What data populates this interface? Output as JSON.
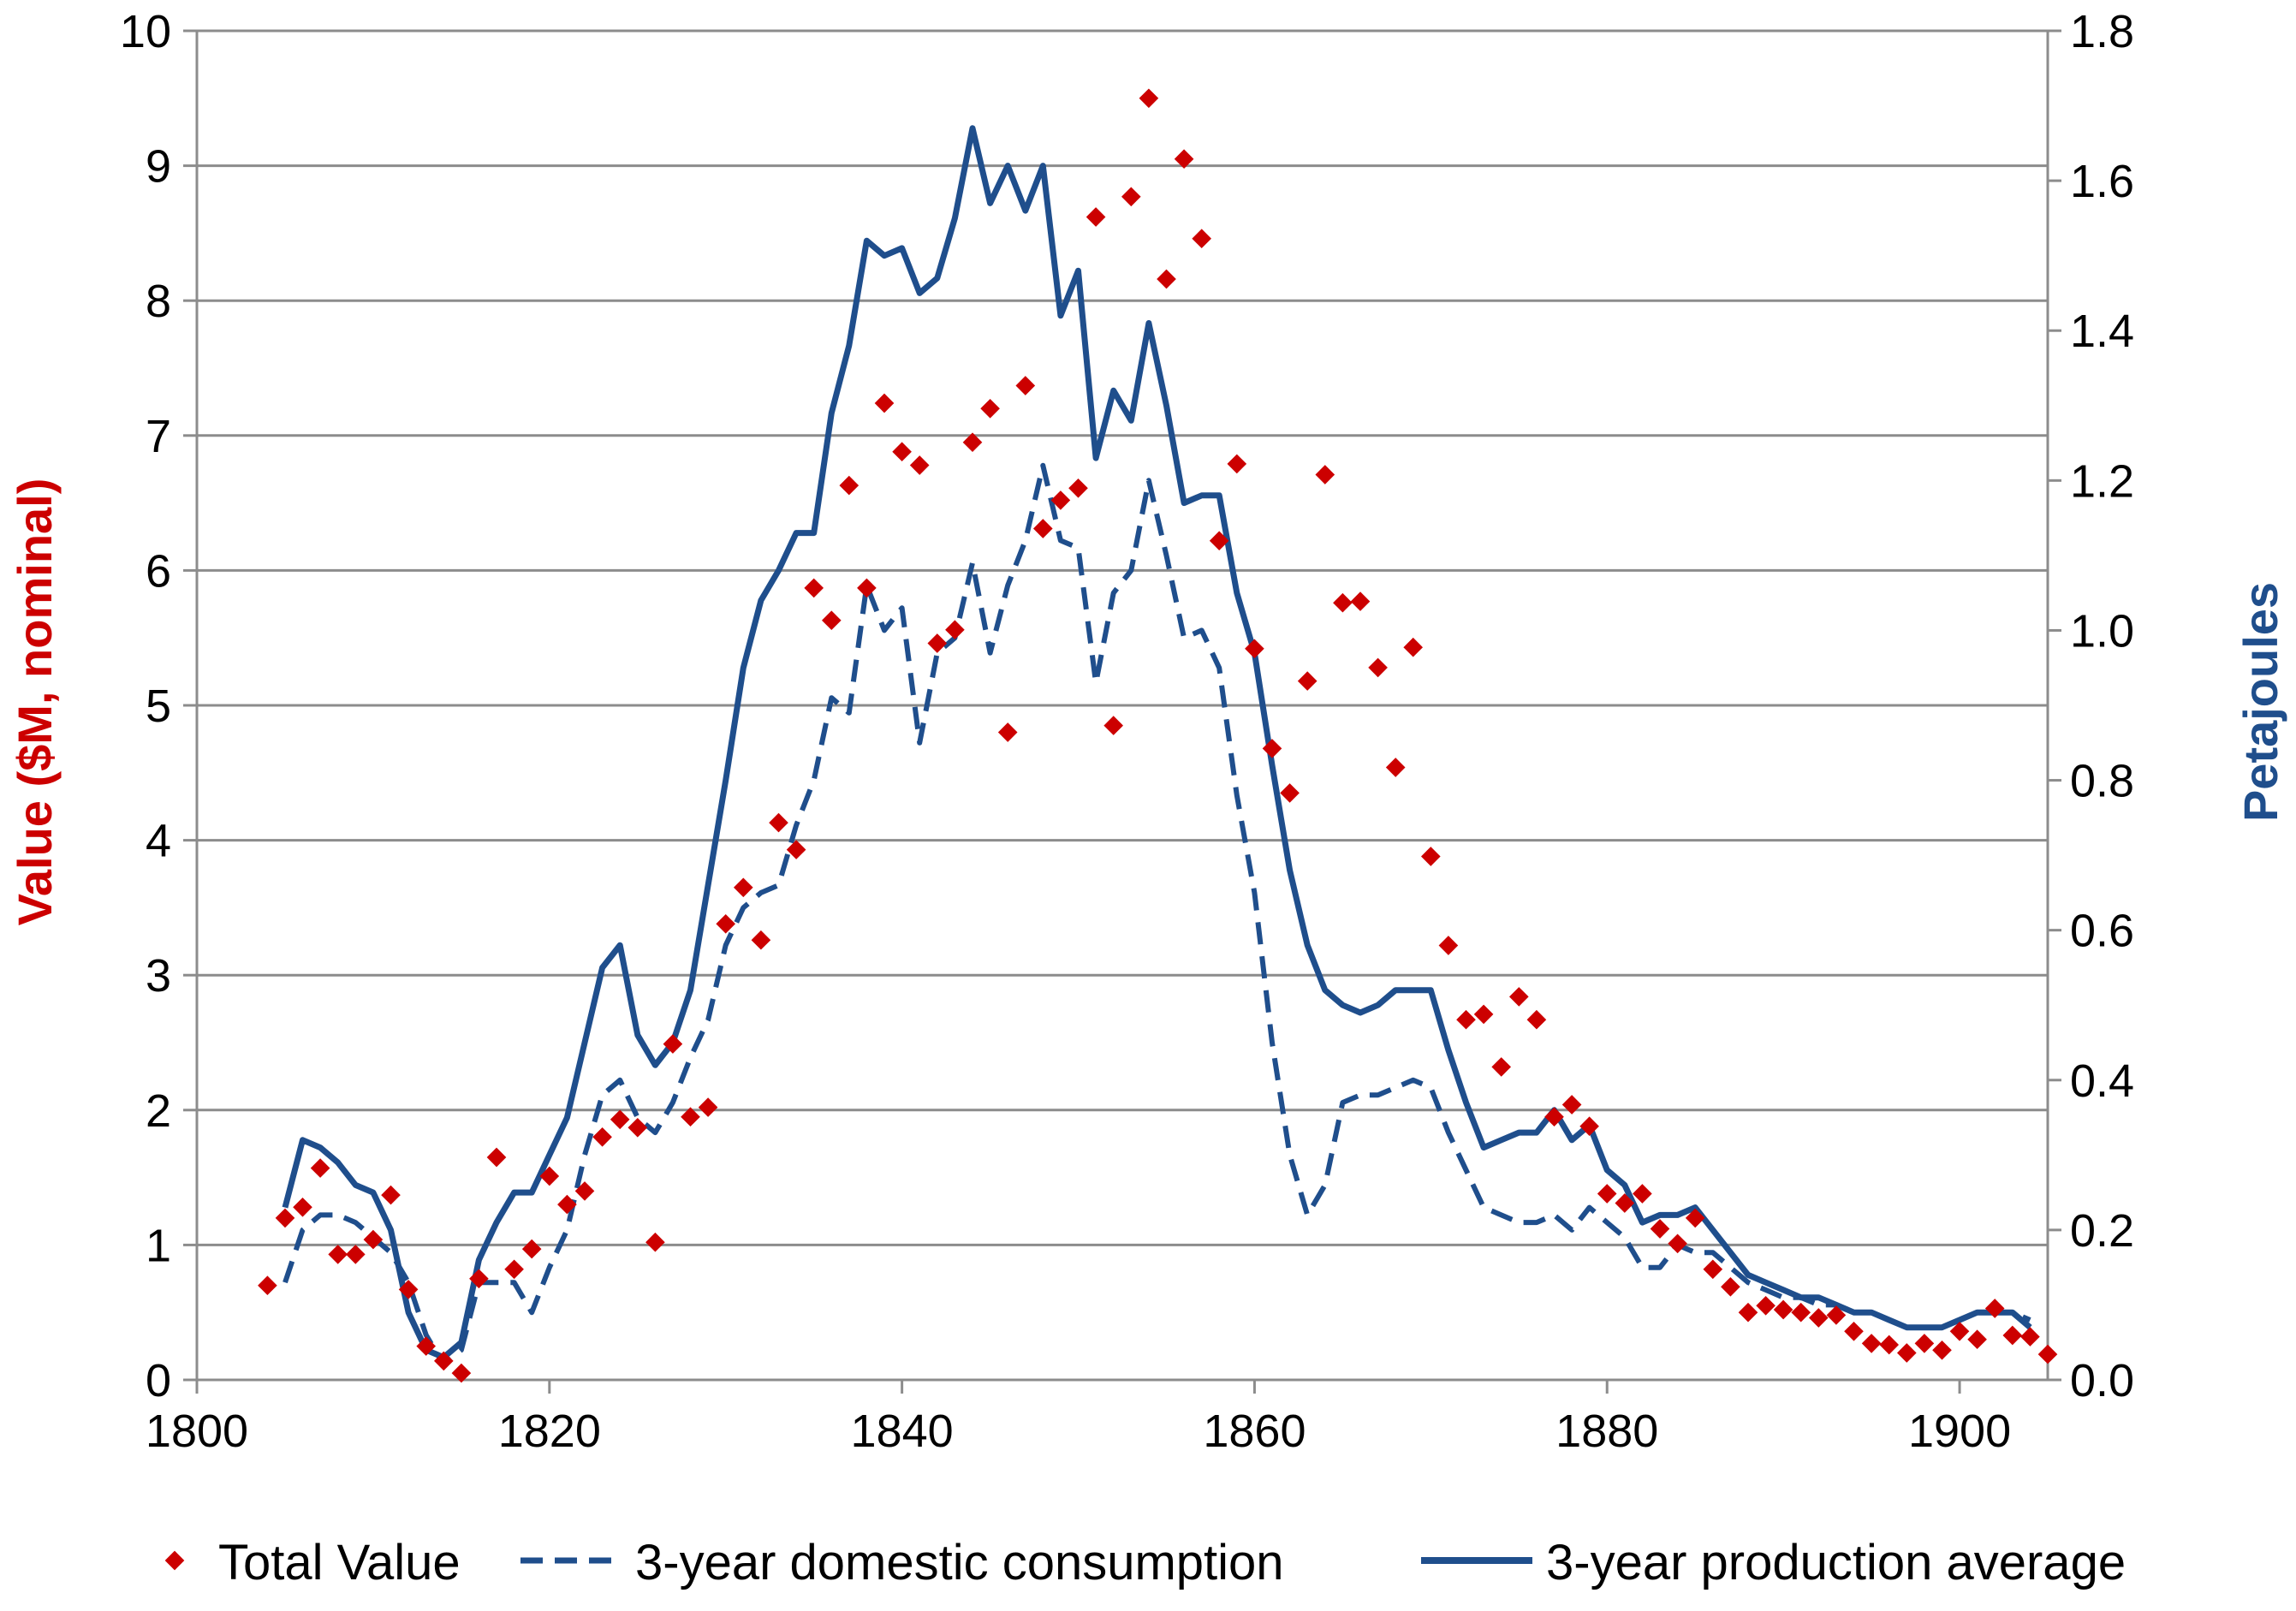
{
  "chart_data": {
    "type": "line",
    "title": "",
    "xlabel": "",
    "ylabel_left": "Value ($M, nominal)",
    "ylabel_right": "Petajoules",
    "xlim": [
      1800,
      1905
    ],
    "ylim_left": [
      0,
      10
    ],
    "ylim_right": [
      0,
      1.8
    ],
    "x_ticks": [
      1800,
      1820,
      1840,
      1860,
      1880,
      1900
    ],
    "y_left_ticks": [
      0,
      1,
      2,
      3,
      4,
      5,
      6,
      7,
      8,
      9,
      10
    ],
    "y_right_ticks": [
      "0.0",
      "0.2",
      "0.4",
      "0.6",
      "0.8",
      "1.0",
      "1.2",
      "1.4",
      "1.6",
      "1.8"
    ],
    "grid": "horizontal",
    "legend_position": "bottom",
    "colors": {
      "total_value": "#cc0000",
      "consumption": "#1f4e8c",
      "production": "#1f4e8c",
      "grid": "#8c8c8c",
      "left_axis_title": "#cc0000",
      "right_axis_title": "#1f4e8c"
    },
    "series": [
      {
        "name": "Total Value",
        "style": "markers",
        "axis": "left",
        "x": [
          1804,
          1805,
          1806,
          1807,
          1808,
          1809,
          1810,
          1811,
          1812,
          1813,
          1814,
          1815,
          1816,
          1817,
          1818,
          1819,
          1820,
          1821,
          1822,
          1823,
          1824,
          1825,
          1826,
          1827,
          1828,
          1829,
          1830,
          1831,
          1832,
          1833,
          1834,
          1835,
          1836,
          1837,
          1838,
          1839,
          1840,
          1841,
          1842,
          1843,
          1844,
          1845,
          1846,
          1847,
          1848,
          1849,
          1850,
          1851,
          1852,
          1853,
          1854,
          1855,
          1856,
          1857,
          1858,
          1859,
          1860,
          1861,
          1862,
          1863,
          1864,
          1865,
          1866,
          1867,
          1868,
          1869,
          1870,
          1871,
          1872,
          1873,
          1874,
          1875,
          1876,
          1877,
          1878,
          1879,
          1880,
          1881,
          1882,
          1883,
          1884,
          1885,
          1886,
          1887,
          1888,
          1889,
          1890,
          1891,
          1892,
          1893,
          1894,
          1895,
          1896,
          1897,
          1898,
          1899,
          1900,
          1901,
          1902,
          1903,
          1904,
          1905
        ],
        "values": [
          0.7,
          1.2,
          1.28,
          1.57,
          0.93,
          0.93,
          1.04,
          1.37,
          0.67,
          0.25,
          0.14,
          0.05,
          0.75,
          1.65,
          0.82,
          0.97,
          1.51,
          1.3,
          1.4,
          1.8,
          1.93,
          1.87,
          1.02,
          2.49,
          1.95,
          2.02,
          3.38,
          3.65,
          3.26,
          4.13,
          3.93,
          5.87,
          5.63,
          6.63,
          5.87,
          7.24,
          6.88,
          6.78,
          5.46,
          5.56,
          6.95,
          7.2,
          4.8,
          7.37,
          6.31,
          6.52,
          6.61,
          8.62,
          4.85,
          8.77,
          9.5,
          8.16,
          9.05,
          8.46,
          6.22,
          6.79,
          5.42,
          4.68,
          4.35,
          5.18,
          6.71,
          5.76,
          5.77,
          5.28,
          4.54,
          5.43,
          3.88,
          3.22,
          2.67,
          2.71,
          2.32,
          2.84,
          2.67,
          1.95,
          2.04,
          1.88,
          1.38,
          1.31,
          1.38,
          1.12,
          1.01,
          1.2,
          0.82,
          0.69,
          0.5,
          0.55,
          0.52,
          0.5,
          0.46,
          0.48,
          0.36,
          0.27,
          0.26,
          0.2,
          0.27,
          0.22,
          0.36,
          0.3,
          0.53,
          0.33,
          0.32,
          0.19
        ]
      },
      {
        "name": "3-year domestic consumption",
        "style": "dashed",
        "axis": "right",
        "x": [
          1805,
          1806,
          1807,
          1808,
          1809,
          1810,
          1811,
          1812,
          1813,
          1814,
          1815,
          1816,
          1817,
          1818,
          1819,
          1820,
          1821,
          1822,
          1823,
          1824,
          1825,
          1826,
          1827,
          1828,
          1829,
          1830,
          1831,
          1832,
          1833,
          1834,
          1835,
          1836,
          1837,
          1838,
          1839,
          1840,
          1841,
          1842,
          1843,
          1844,
          1845,
          1846,
          1847,
          1848,
          1849,
          1850,
          1851,
          1852,
          1853,
          1854,
          1855,
          1856,
          1857,
          1858,
          1859,
          1860,
          1861,
          1862,
          1863,
          1864,
          1865,
          1866,
          1867,
          1868,
          1869,
          1870,
          1871,
          1872,
          1873,
          1874,
          1875,
          1876,
          1877,
          1878,
          1879,
          1880,
          1881,
          1882,
          1883,
          1884,
          1885,
          1886,
          1887,
          1888,
          1889,
          1890,
          1891,
          1892,
          1893,
          1894,
          1895,
          1896,
          1897,
          1898,
          1899,
          1900,
          1901,
          1902,
          1903,
          1904
        ],
        "values": [
          0.13,
          0.2,
          0.22,
          0.22,
          0.21,
          0.19,
          0.17,
          0.13,
          0.06,
          0.02,
          0.04,
          0.13,
          0.13,
          0.13,
          0.09,
          0.15,
          0.2,
          0.3,
          0.38,
          0.4,
          0.35,
          0.33,
          0.37,
          0.43,
          0.48,
          0.58,
          0.63,
          0.65,
          0.66,
          0.74,
          0.8,
          0.91,
          0.89,
          1.06,
          1.0,
          1.03,
          0.85,
          0.97,
          0.99,
          1.09,
          0.97,
          1.06,
          1.12,
          1.22,
          1.12,
          1.11,
          0.93,
          1.05,
          1.08,
          1.2,
          1.1,
          0.99,
          1.0,
          0.95,
          0.78,
          0.65,
          0.45,
          0.3,
          0.22,
          0.26,
          0.37,
          0.38,
          0.38,
          0.39,
          0.4,
          0.39,
          0.33,
          0.28,
          0.23,
          0.22,
          0.21,
          0.21,
          0.22,
          0.2,
          0.23,
          0.21,
          0.19,
          0.15,
          0.15,
          0.18,
          0.17,
          0.17,
          0.15,
          0.13,
          0.12,
          0.11,
          0.11,
          0.1,
          0.1,
          0.09,
          0.09,
          0.08,
          0.07,
          0.07,
          0.07,
          0.08,
          0.09,
          0.09,
          0.09,
          0.08
        ]
      },
      {
        "name": "3-year production average",
        "style": "solid",
        "axis": "right",
        "x": [
          1805,
          1806,
          1807,
          1808,
          1809,
          1810,
          1811,
          1812,
          1813,
          1814,
          1815,
          1816,
          1817,
          1818,
          1819,
          1820,
          1821,
          1822,
          1823,
          1824,
          1825,
          1826,
          1827,
          1828,
          1829,
          1830,
          1831,
          1832,
          1833,
          1834,
          1835,
          1836,
          1837,
          1838,
          1839,
          1840,
          1841,
          1842,
          1843,
          1844,
          1845,
          1846,
          1847,
          1848,
          1849,
          1850,
          1851,
          1852,
          1853,
          1854,
          1855,
          1856,
          1857,
          1858,
          1859,
          1860,
          1861,
          1862,
          1863,
          1864,
          1865,
          1866,
          1867,
          1868,
          1869,
          1870,
          1871,
          1872,
          1873,
          1874,
          1875,
          1876,
          1877,
          1878,
          1879,
          1880,
          1881,
          1882,
          1883,
          1884,
          1885,
          1886,
          1887,
          1888,
          1889,
          1890,
          1891,
          1892,
          1893,
          1894,
          1895,
          1896,
          1897,
          1898,
          1899,
          1900,
          1901,
          1902,
          1903,
          1904
        ],
        "values": [
          0.23,
          0.32,
          0.31,
          0.29,
          0.26,
          0.25,
          0.2,
          0.09,
          0.04,
          0.03,
          0.05,
          0.16,
          0.21,
          0.25,
          0.25,
          0.3,
          0.35,
          0.45,
          0.55,
          0.58,
          0.46,
          0.42,
          0.45,
          0.52,
          0.66,
          0.8,
          0.95,
          1.04,
          1.08,
          1.13,
          1.13,
          1.29,
          1.38,
          1.52,
          1.5,
          1.51,
          1.45,
          1.47,
          1.55,
          1.67,
          1.57,
          1.62,
          1.56,
          1.62,
          1.42,
          1.48,
          1.23,
          1.32,
          1.28,
          1.41,
          1.3,
          1.17,
          1.18,
          1.18,
          1.05,
          0.97,
          0.82,
          0.68,
          0.58,
          0.52,
          0.5,
          0.49,
          0.5,
          0.52,
          0.52,
          0.52,
          0.44,
          0.37,
          0.31,
          0.32,
          0.33,
          0.33,
          0.36,
          0.32,
          0.34,
          0.28,
          0.26,
          0.21,
          0.22,
          0.22,
          0.23,
          0.2,
          0.17,
          0.14,
          0.13,
          0.12,
          0.11,
          0.11,
          0.1,
          0.09,
          0.09,
          0.08,
          0.07,
          0.07,
          0.07,
          0.08,
          0.09,
          0.09,
          0.09,
          0.07
        ]
      }
    ]
  }
}
